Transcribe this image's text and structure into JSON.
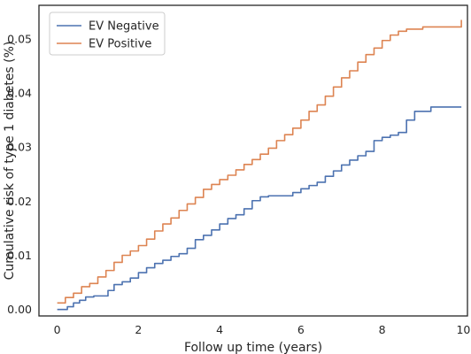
{
  "chart_data": {
    "type": "line",
    "title": "",
    "xlabel": "Follow up time (years)",
    "ylabel": "Cumulative risk of type 1 diabetes (%)",
    "xlim": [
      -0.45,
      10.1
    ],
    "ylim": [
      -0.0012,
      0.0562
    ],
    "x_ticks": [
      0,
      2,
      4,
      6,
      8,
      10
    ],
    "y_ticks": [
      0.0,
      0.01,
      0.02,
      0.03,
      0.04,
      0.05
    ],
    "x_tick_labels": [
      "0",
      "2",
      "4",
      "6",
      "8",
      "10"
    ],
    "y_tick_labels": [
      "0.00",
      "0.01",
      "0.02",
      "0.03",
      "0.04",
      "0.05"
    ],
    "grid": false,
    "legend_position": "top-left",
    "series": [
      {
        "name": "EV Negative",
        "color": "#4c72b0",
        "x": [
          0.0,
          0.25,
          0.4,
          0.55,
          0.7,
          0.9,
          1.1,
          1.25,
          1.4,
          1.6,
          1.8,
          2.0,
          2.2,
          2.4,
          2.6,
          2.8,
          3.0,
          3.2,
          3.4,
          3.6,
          3.8,
          4.0,
          4.2,
          4.4,
          4.6,
          4.8,
          5.0,
          5.2,
          5.4,
          5.6,
          5.8,
          6.0,
          6.2,
          6.4,
          6.6,
          6.8,
          7.0,
          7.2,
          7.4,
          7.6,
          7.8,
          8.0,
          8.2,
          8.4,
          8.6,
          8.8,
          9.0,
          9.2,
          9.4,
          9.6,
          9.8,
          9.95
        ],
        "values": [
          0.0,
          0.0005,
          0.0012,
          0.0017,
          0.0023,
          0.0025,
          0.0025,
          0.0035,
          0.0046,
          0.0051,
          0.0058,
          0.0068,
          0.0077,
          0.0085,
          0.0091,
          0.0098,
          0.0103,
          0.0113,
          0.0129,
          0.0137,
          0.0147,
          0.0158,
          0.0168,
          0.0175,
          0.0186,
          0.0201,
          0.0208,
          0.021,
          0.021,
          0.021,
          0.0216,
          0.0223,
          0.0229,
          0.0235,
          0.0246,
          0.0256,
          0.0267,
          0.0276,
          0.0284,
          0.0292,
          0.0312,
          0.0318,
          0.0322,
          0.0327,
          0.035,
          0.0366,
          0.0366,
          0.0374,
          0.0374,
          0.0374,
          0.0374,
          0.0374
        ]
      },
      {
        "name": "EV Positive",
        "color": "#dd8452",
        "x": [
          0.0,
          0.2,
          0.4,
          0.6,
          0.8,
          1.0,
          1.2,
          1.4,
          1.6,
          1.8,
          2.0,
          2.2,
          2.4,
          2.6,
          2.8,
          3.0,
          3.2,
          3.4,
          3.6,
          3.8,
          4.0,
          4.2,
          4.4,
          4.6,
          4.8,
          5.0,
          5.2,
          5.4,
          5.6,
          5.8,
          6.0,
          6.2,
          6.4,
          6.6,
          6.8,
          7.0,
          7.2,
          7.4,
          7.6,
          7.8,
          8.0,
          8.2,
          8.4,
          8.6,
          8.8,
          9.0,
          9.2,
          9.4,
          9.6,
          9.8,
          9.95
        ],
        "values": [
          0.0012,
          0.0022,
          0.003,
          0.0042,
          0.0048,
          0.006,
          0.0072,
          0.0087,
          0.01,
          0.0108,
          0.0118,
          0.013,
          0.0145,
          0.0158,
          0.0169,
          0.0183,
          0.0195,
          0.0207,
          0.0222,
          0.0231,
          0.024,
          0.0248,
          0.0258,
          0.0268,
          0.0277,
          0.0287,
          0.0298,
          0.0312,
          0.0323,
          0.0335,
          0.035,
          0.0366,
          0.0378,
          0.0394,
          0.0411,
          0.0428,
          0.0441,
          0.0457,
          0.0471,
          0.0483,
          0.0497,
          0.0507,
          0.0514,
          0.0518,
          0.0518,
          0.0522,
          0.0522,
          0.0522,
          0.0522,
          0.0522,
          0.0535
        ]
      }
    ]
  }
}
